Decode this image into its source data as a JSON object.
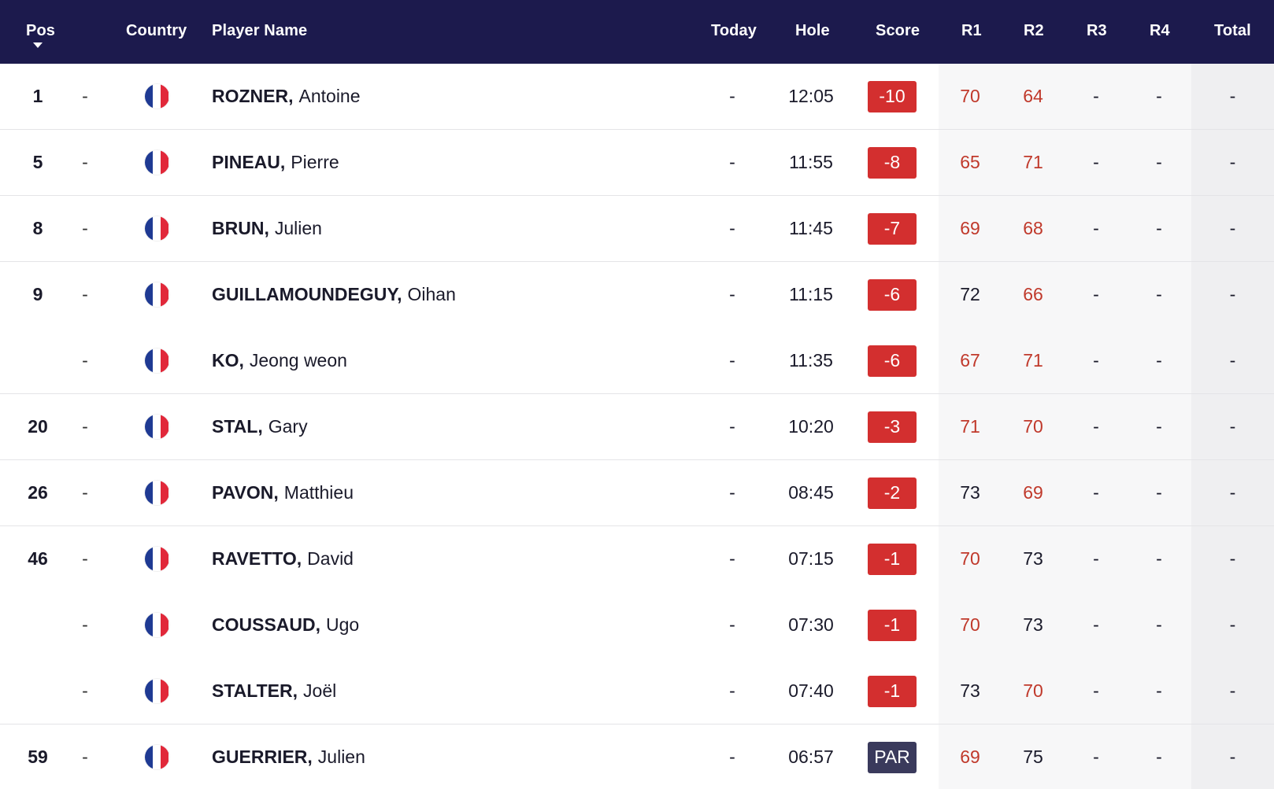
{
  "header": {
    "pos": "Pos",
    "country": "Country",
    "player_name": "Player Name",
    "today": "Today",
    "hole": "Hole",
    "score": "Score",
    "r1": "R1",
    "r2": "R2",
    "r3": "R3",
    "r4": "R4",
    "total": "Total"
  },
  "colors": {
    "header_bg": "#1c1a4d",
    "under_par": "#d32f2f",
    "par": "#3a3a5c",
    "sub_par_round": "#c0392b"
  },
  "rows": [
    {
      "pos": "1",
      "move": "-",
      "country": "france-flag-icon",
      "last": "ROZNER,",
      "first": "Antoine",
      "today": "-",
      "hole": "12:05",
      "score": "-10",
      "r1": "70",
      "r2": "64",
      "r3": "-",
      "r4": "-",
      "total": "-"
    },
    {
      "pos": "5",
      "move": "-",
      "country": "france-flag-icon",
      "last": "PINEAU,",
      "first": "Pierre",
      "today": "-",
      "hole": "11:55",
      "score": "-8",
      "r1": "65",
      "r2": "71",
      "r3": "-",
      "r4": "-",
      "total": "-"
    },
    {
      "pos": "8",
      "move": "-",
      "country": "france-flag-icon",
      "last": "BRUN,",
      "first": "Julien",
      "today": "-",
      "hole": "11:45",
      "score": "-7",
      "r1": "69",
      "r2": "68",
      "r3": "-",
      "r4": "-",
      "total": "-"
    },
    {
      "pos": "9",
      "move": "-",
      "country": "france-flag-icon",
      "last": "GUILLAMOUNDEGUY,",
      "first": "Oihan",
      "today": "-",
      "hole": "11:15",
      "score": "-6",
      "r1": "72",
      "r2": "66",
      "r3": "-",
      "r4": "-",
      "total": "-"
    },
    {
      "pos": "",
      "move": "-",
      "country": "france-flag-icon",
      "last": "KO,",
      "first": "Jeong weon",
      "today": "-",
      "hole": "11:35",
      "score": "-6",
      "r1": "67",
      "r2": "71",
      "r3": "-",
      "r4": "-",
      "total": "-"
    },
    {
      "pos": "20",
      "move": "-",
      "country": "france-flag-icon",
      "last": "STAL,",
      "first": "Gary",
      "today": "-",
      "hole": "10:20",
      "score": "-3",
      "r1": "71",
      "r2": "70",
      "r3": "-",
      "r4": "-",
      "total": "-"
    },
    {
      "pos": "26",
      "move": "-",
      "country": "france-flag-icon",
      "last": "PAVON,",
      "first": "Matthieu",
      "today": "-",
      "hole": "08:45",
      "score": "-2",
      "r1": "73",
      "r2": "69",
      "r3": "-",
      "r4": "-",
      "total": "-"
    },
    {
      "pos": "46",
      "move": "-",
      "country": "france-flag-icon",
      "last": "RAVETTO,",
      "first": "David",
      "today": "-",
      "hole": "07:15",
      "score": "-1",
      "r1": "70",
      "r2": "73",
      "r3": "-",
      "r4": "-",
      "total": "-"
    },
    {
      "pos": "",
      "move": "-",
      "country": "france-flag-icon",
      "last": "COUSSAUD,",
      "first": "Ugo",
      "today": "-",
      "hole": "07:30",
      "score": "-1",
      "r1": "70",
      "r2": "73",
      "r3": "-",
      "r4": "-",
      "total": "-"
    },
    {
      "pos": "",
      "move": "-",
      "country": "france-flag-icon",
      "last": "STALTER,",
      "first": "Joël",
      "today": "-",
      "hole": "07:40",
      "score": "-1",
      "r1": "73",
      "r2": "70",
      "r3": "-",
      "r4": "-",
      "total": "-"
    },
    {
      "pos": "59",
      "move": "-",
      "country": "france-flag-icon",
      "last": "GUERRIER,",
      "first": "Julien",
      "today": "-",
      "hole": "06:57",
      "score": "PAR",
      "r1": "69",
      "r2": "75",
      "r3": "-",
      "r4": "-",
      "total": "-"
    }
  ]
}
